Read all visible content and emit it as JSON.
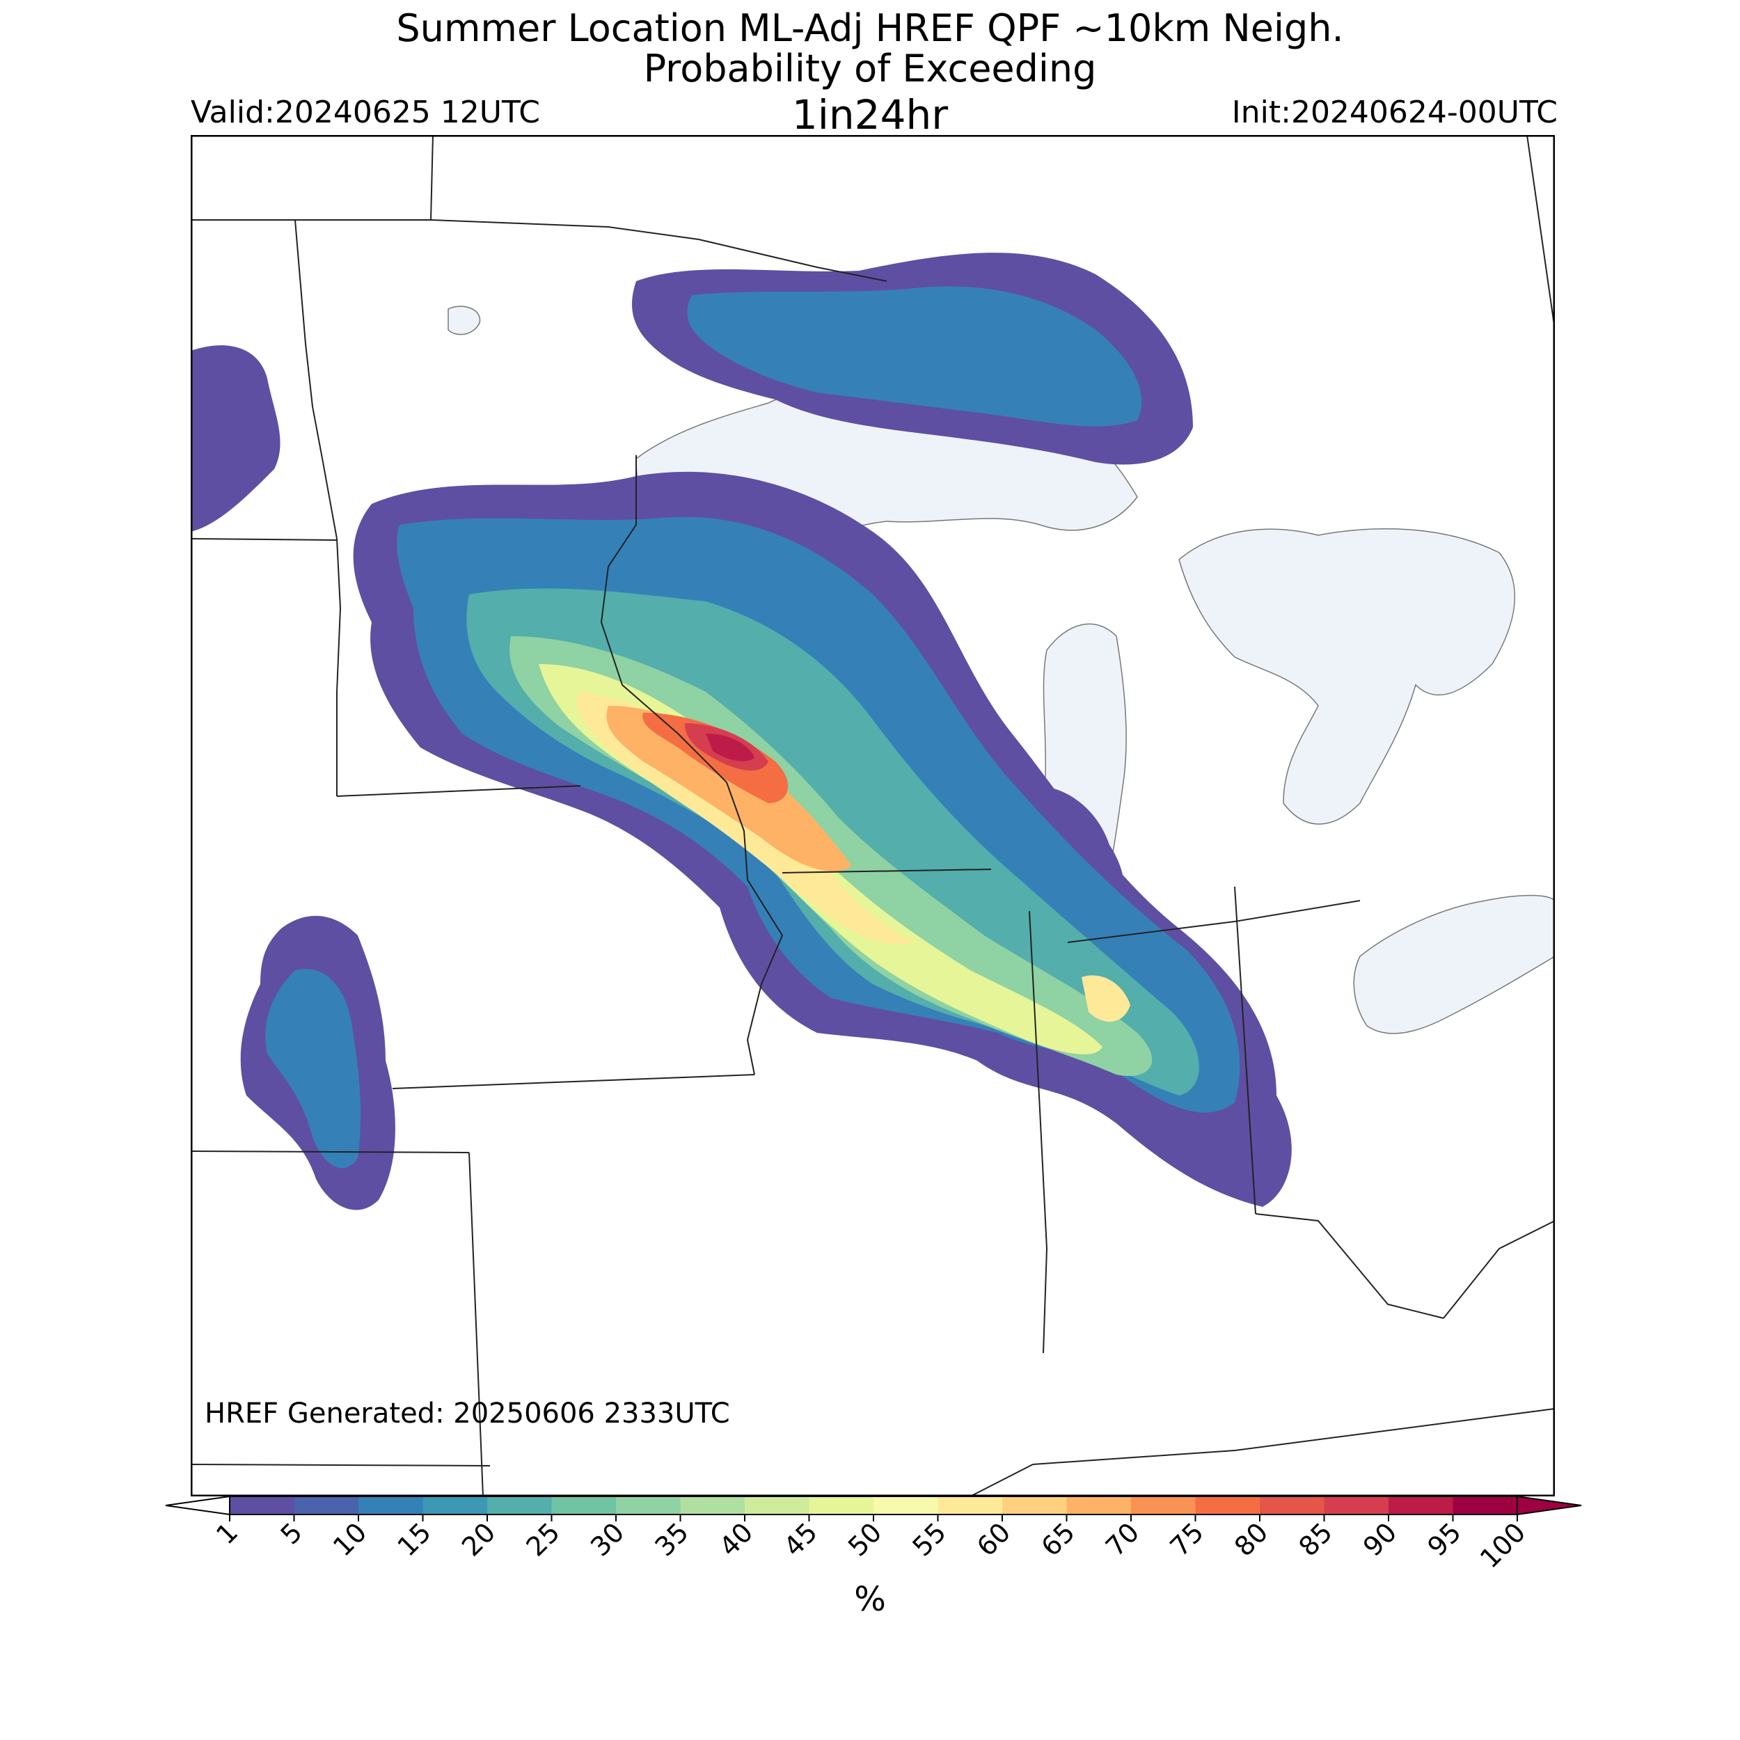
{
  "header": {
    "title_line1": "Summer Location ML-Adj HREF QPF ~10km Neigh.",
    "title_line2": "Probability of Exceeding",
    "title_line3": "1in24hr",
    "valid": "Valid:20240625 12UTC",
    "init": "Init:20240624-00UTC"
  },
  "map": {
    "generated_text": "HREF Generated: 20250606 2333UTC",
    "lake_color": "#eef3f9",
    "border_color": "#222222"
  },
  "colorbar": {
    "unit": "%",
    "ticks": [
      "1",
      "5",
      "10",
      "15",
      "20",
      "25",
      "30",
      "35",
      "40",
      "45",
      "50",
      "55",
      "60",
      "65",
      "70",
      "75",
      "80",
      "85",
      "90",
      "95",
      "100"
    ],
    "colors": [
      "#5e4fa2",
      "#4a63ac",
      "#3680b8",
      "#3d98b4",
      "#53aeac",
      "#6fc4a4",
      "#8fd2a3",
      "#b0dfa2",
      "#cfec9d",
      "#e6f598",
      "#f6faaa",
      "#fee999",
      "#fed07f",
      "#fdb266",
      "#f99253",
      "#f46d43",
      "#e55649",
      "#d53e4f",
      "#bd1c49",
      "#9e0142"
    ]
  },
  "legend": []
}
